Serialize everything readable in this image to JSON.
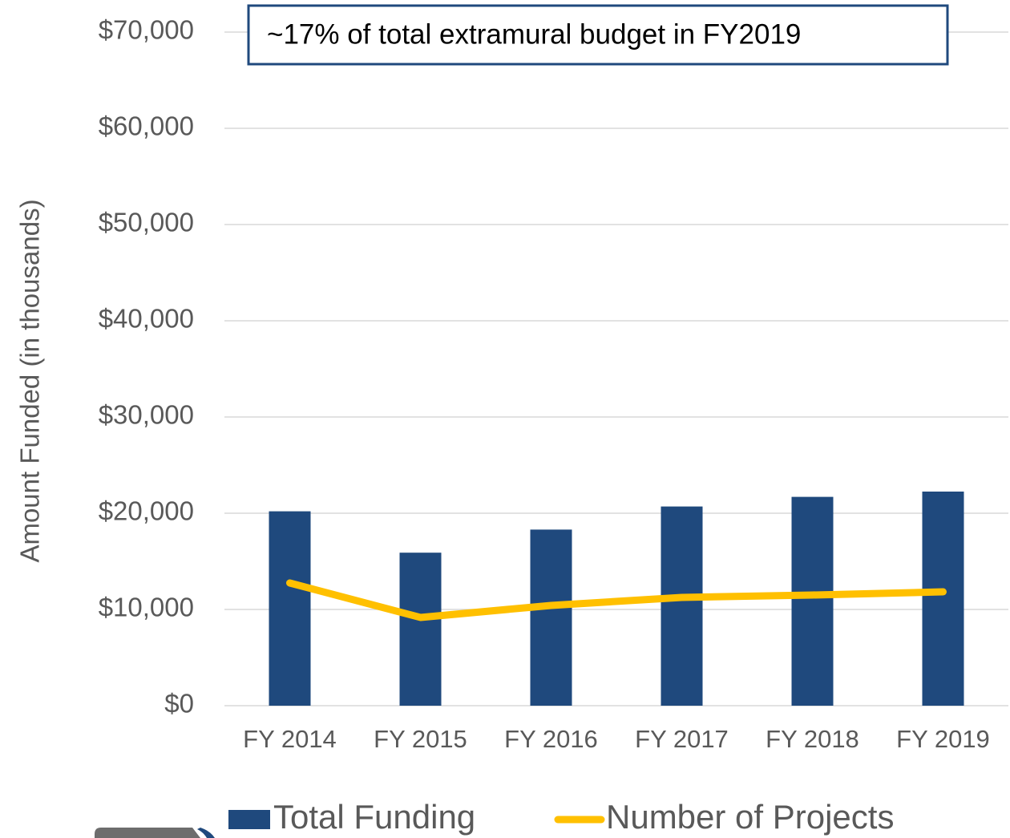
{
  "chart_data": {
    "type": "bar",
    "y_label": "Amount Funded (in thousands)",
    "annotation": "~17% of total extramural budget in FY2019",
    "categories": [
      "FY 2014",
      "FY 2015",
      "FY 2016",
      "FY 2017",
      "FY 2018",
      "FY 2019"
    ],
    "series": [
      {
        "name": "Total Funding",
        "type": "bar",
        "color": "#1f497d",
        "values": [
          20200,
          15900,
          18300,
          20700,
          21700,
          22250
        ]
      },
      {
        "name": "Number of Projects",
        "type": "line",
        "color": "#ffc000",
        "values": [
          12750,
          9170,
          10420,
          11250,
          11500,
          11830
        ]
      }
    ],
    "ylim": [
      0,
      70000
    ],
    "yticks": [
      {
        "value": 0,
        "label": "$0"
      },
      {
        "value": 10000,
        "label": "$10,000"
      },
      {
        "value": 20000,
        "label": "$20,000"
      },
      {
        "value": 30000,
        "label": "$30,000"
      },
      {
        "value": 40000,
        "label": "$40,000"
      },
      {
        "value": 50000,
        "label": "$50,000"
      },
      {
        "value": 60000,
        "label": "$60,000"
      },
      {
        "value": 70000,
        "label": "$70,000"
      }
    ],
    "grid": true,
    "legend": "bottom"
  }
}
